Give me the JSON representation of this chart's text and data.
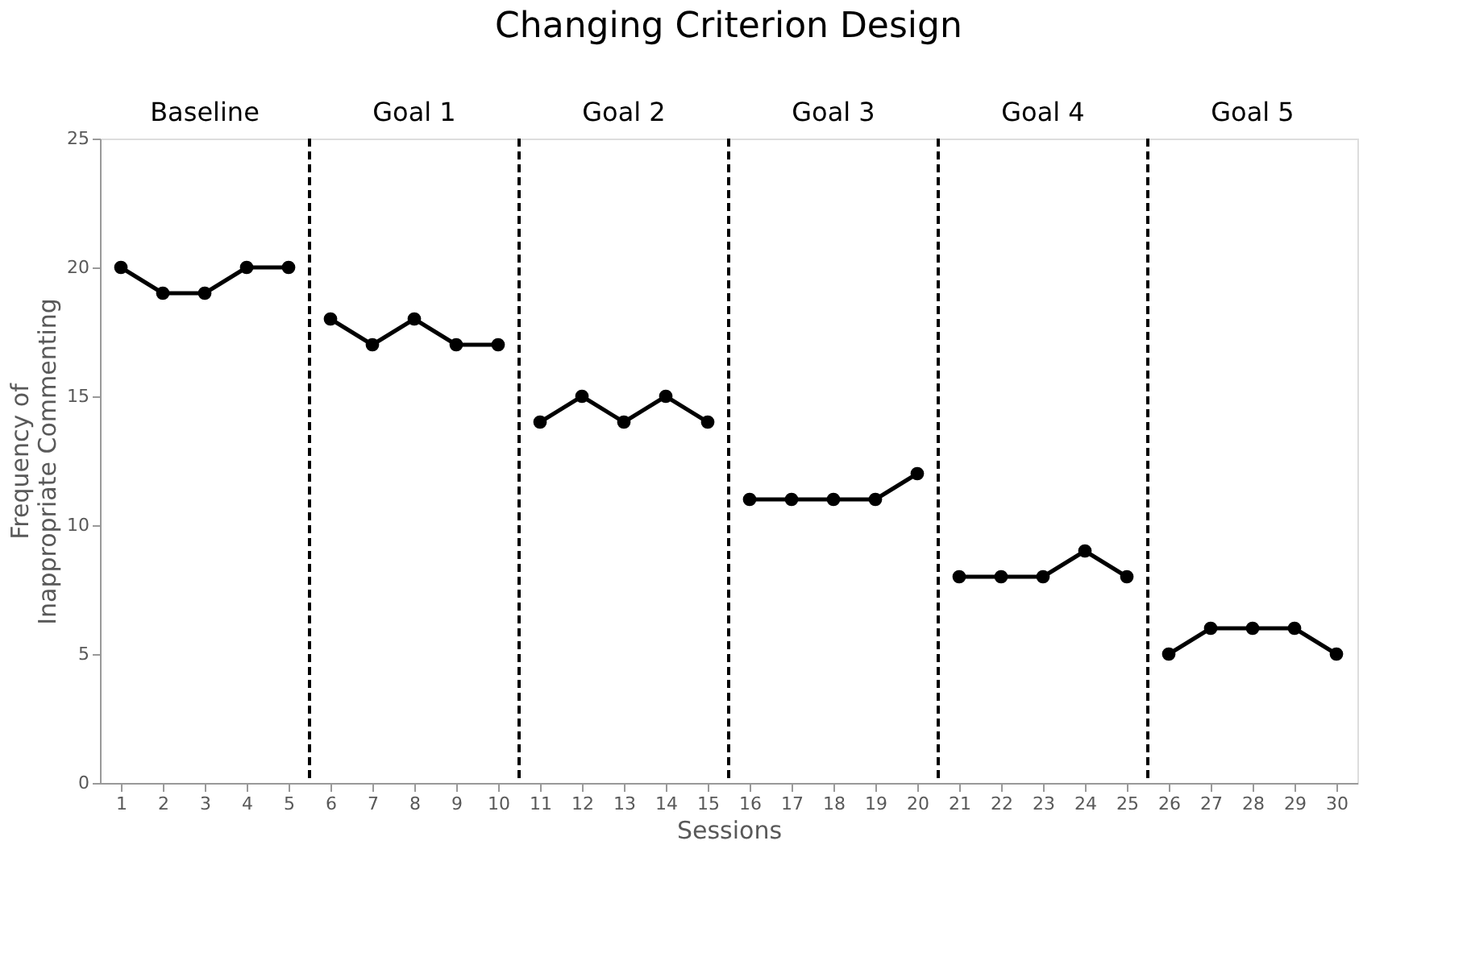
{
  "chart_data": {
    "type": "line",
    "title": "Changing Criterion Design",
    "xlabel": "Sessions",
    "ylabel": "Frequency of Inappropriate Commenting",
    "xlim": [
      0.5,
      30.5
    ],
    "xticks": [
      1,
      2,
      3,
      4,
      5,
      6,
      7,
      8,
      9,
      10,
      11,
      12,
      13,
      14,
      15,
      16,
      17,
      18,
      19,
      20,
      21,
      22,
      23,
      24,
      25,
      26,
      27,
      28,
      29,
      30
    ],
    "ylim": [
      0,
      25
    ],
    "yticks": [
      0,
      5,
      10,
      15,
      20,
      25
    ],
    "grid": false,
    "legend": false,
    "marker": "circle",
    "line_style": "solid",
    "series": [
      {
        "color": "#000000",
        "x": [
          1,
          2,
          3,
          4,
          5
        ],
        "values": [
          20,
          19,
          19,
          20,
          20
        ]
      },
      {
        "color": "#000000",
        "x": [
          6,
          7,
          8,
          9,
          10
        ],
        "values": [
          18,
          17,
          18,
          17,
          17
        ]
      },
      {
        "color": "#000000",
        "x": [
          11,
          12,
          13,
          14,
          15
        ],
        "values": [
          14,
          15,
          14,
          15,
          14
        ]
      },
      {
        "color": "#000000",
        "x": [
          16,
          17,
          18,
          19,
          20
        ],
        "values": [
          11,
          11,
          11,
          11,
          12
        ]
      },
      {
        "color": "#000000",
        "x": [
          21,
          22,
          23,
          24,
          25
        ],
        "values": [
          8,
          8,
          8,
          9,
          8
        ]
      },
      {
        "color": "#000000",
        "x": [
          26,
          27,
          28,
          29,
          30
        ],
        "values": [
          5,
          6,
          6,
          6,
          5
        ]
      }
    ],
    "annotations": [
      "Baseline",
      "Goal 1",
      "Goal 2",
      "Goal 3",
      "Goal 4",
      "Goal 5"
    ],
    "ref_lines": [
      {
        "axis": "x",
        "value": 5.5,
        "color": "#000000",
        "line_style": "dashed"
      },
      {
        "axis": "x",
        "value": 10.5,
        "color": "#000000",
        "line_style": "dashed"
      },
      {
        "axis": "x",
        "value": 15.5,
        "color": "#000000",
        "line_style": "dashed"
      },
      {
        "axis": "x",
        "value": 20.5,
        "color": "#000000",
        "line_style": "dashed"
      },
      {
        "axis": "x",
        "value": 25.5,
        "color": "#000000",
        "line_style": "dashed"
      }
    ]
  }
}
